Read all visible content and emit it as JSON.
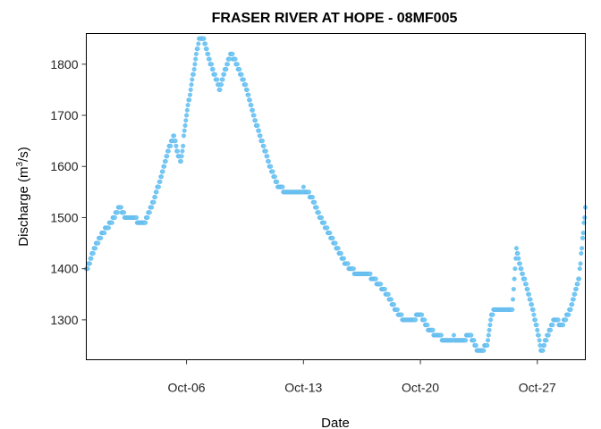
{
  "chart_data": {
    "type": "scatter",
    "title": "FRASER RIVER AT HOPE - 08MF005",
    "xlabel": "Date",
    "ylabel_main": "Discharge (m",
    "ylabel_sup": "3",
    "ylabel_end": "/s)",
    "xlim": [
      "2023-09-30T00:00",
      "2023-10-29T21:00"
    ],
    "ylim": [
      1222,
      1860
    ],
    "x_ticks": [
      {
        "date": "2023-10-06",
        "label": "Oct-06"
      },
      {
        "date": "2023-10-13",
        "label": "Oct-13"
      },
      {
        "date": "2023-10-20",
        "label": "Oct-20"
      },
      {
        "date": "2023-10-27",
        "label": "Oct-27"
      }
    ],
    "y_ticks": [
      1300,
      1400,
      1500,
      1600,
      1700,
      1800
    ],
    "grid": false,
    "marker_color": "#74c8f5",
    "marker_edge_color": "#5fb8ea",
    "series": [
      {
        "x": [
          "2023-09-30T00:00",
          "2023-09-30T12:00",
          "2023-10-01T00:00",
          "2023-10-01T12:00",
          "2023-10-02T00:00",
          "2023-10-02T08:00",
          "2023-10-02T16:00",
          "2023-10-03T00:00",
          "2023-10-03T06:00",
          "2023-10-03T12:00",
          "2023-10-04T00:00",
          "2023-10-04T12:00",
          "2023-10-05T00:00",
          "2023-10-05T06:00",
          "2023-10-05T12:00",
          "2023-10-05T16:00",
          "2023-10-06T00:00",
          "2023-10-06T12:00",
          "2023-10-06T18:00",
          "2023-10-07T00:00",
          "2023-10-07T08:00",
          "2023-10-07T16:00",
          "2023-10-08T00:00",
          "2023-10-08T08:00",
          "2023-10-08T16:00",
          "2023-10-09T00:00",
          "2023-10-09T12:00",
          "2023-10-10T00:00",
          "2023-10-10T12:00",
          "2023-10-11T00:00",
          "2023-10-11T12:00",
          "2023-10-12T00:00",
          "2023-10-12T12:00",
          "2023-10-13T00:00",
          "2023-10-13T12:00",
          "2023-10-14T00:00",
          "2023-10-14T12:00",
          "2023-10-15T00:00",
          "2023-10-15T12:00",
          "2023-10-16T00:00",
          "2023-10-16T12:00",
          "2023-10-17T00:00",
          "2023-10-17T12:00",
          "2023-10-18T00:00",
          "2023-10-18T12:00",
          "2023-10-19T00:00",
          "2023-10-19T12:00",
          "2023-10-20T00:00",
          "2023-10-20T12:00",
          "2023-10-21T00:00",
          "2023-10-21T12:00",
          "2023-10-22T00:00",
          "2023-10-22T12:00",
          "2023-10-23T00:00",
          "2023-10-23T12:00",
          "2023-10-24T00:00",
          "2023-10-24T06:00",
          "2023-10-24T12:00",
          "2023-10-25T00:00",
          "2023-10-25T12:00",
          "2023-10-25T18:00",
          "2023-10-26T00:00",
          "2023-10-26T12:00",
          "2023-10-27T00:00",
          "2023-10-27T06:00",
          "2023-10-27T12:00",
          "2023-10-28T00:00",
          "2023-10-28T12:00",
          "2023-10-29T00:00",
          "2023-10-29T12:00",
          "2023-10-29T21:00"
        ],
        "y": [
          1395,
          1440,
          1470,
          1490,
          1520,
          1500,
          1495,
          1495,
          1485,
          1490,
          1530,
          1580,
          1640,
          1660,
          1620,
          1610,
          1700,
          1800,
          1850,
          1850,
          1810,
          1780,
          1750,
          1790,
          1820,
          1800,
          1760,
          1700,
          1650,
          1600,
          1560,
          1550,
          1550,
          1555,
          1540,
          1500,
          1470,
          1440,
          1410,
          1395,
          1390,
          1385,
          1370,
          1350,
          1320,
          1300,
          1300,
          1310,
          1280,
          1270,
          1260,
          1265,
          1260,
          1270,
          1235,
          1250,
          1310,
          1320,
          1315,
          1320,
          1440,
          1400,
          1350,
          1280,
          1235,
          1260,
          1300,
          1290,
          1320,
          1380,
          1520
        ]
      }
    ]
  }
}
